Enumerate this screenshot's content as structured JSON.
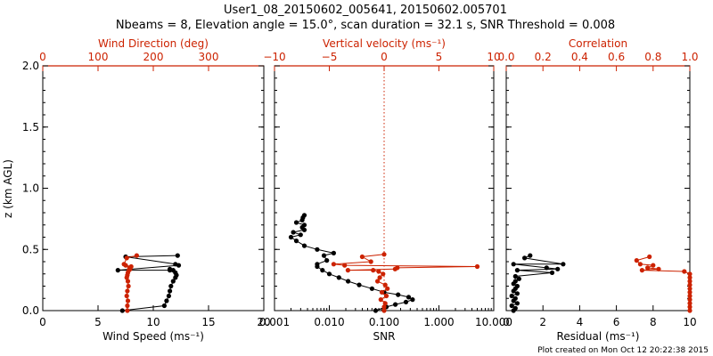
{
  "title_line1": "User1_08_20150602_005641, 20150602.005701",
  "title_line2": "Nbeams = 8, Elevation angle = 15.0°, scan duration = 32.1 s, SNR Threshold = 0.008",
  "footer": "Plot created on Mon Oct 12 20:22:38 2015",
  "colors": {
    "bottom_axis": "#000000",
    "top_axis": "#cc2200"
  },
  "chart_data": [
    {
      "type": "scatter",
      "panel": "wind",
      "ylabel": "z (km AGL)",
      "ylim": [
        0,
        2.0
      ],
      "yticks": [
        "0.0",
        "0.5",
        "1.0",
        "1.5",
        "2.0"
      ],
      "bottom_axis": {
        "label": "Wind Speed (ms⁻¹)",
        "lim": [
          0,
          20
        ],
        "ticks": [
          "0",
          "5",
          "10",
          "15",
          "20"
        ],
        "scale": "linear"
      },
      "top_axis": {
        "label": "Wind Direction (deg)",
        "lim": [
          0,
          400
        ],
        "ticks": [
          "0",
          "100",
          "200",
          "300"
        ],
        "scale": "linear"
      },
      "series": [
        {
          "axis": "bottom",
          "color": "#000000",
          "x": [
            7.2,
            11.0,
            11.2,
            11.4,
            11.5,
            11.6,
            11.8,
            12.0,
            12.1,
            12.0,
            11.8,
            11.5,
            11.5,
            6.8,
            12.3,
            12.0,
            7.5,
            12.2
          ],
          "y": [
            0.0,
            0.04,
            0.08,
            0.12,
            0.16,
            0.2,
            0.24,
            0.27,
            0.29,
            0.31,
            0.33,
            0.34,
            0.33,
            0.33,
            0.37,
            0.38,
            0.44,
            0.45
          ]
        },
        {
          "axis": "top",
          "color": "#cc2200",
          "x": [
            153,
            153,
            154,
            152,
            153,
            155,
            154,
            152,
            153,
            154,
            156,
            158,
            157,
            160,
            150,
            147,
            152,
            170
          ],
          "y": [
            0.0,
            0.04,
            0.08,
            0.12,
            0.16,
            0.2,
            0.24,
            0.27,
            0.29,
            0.31,
            0.33,
            0.34,
            0.35,
            0.36,
            0.37,
            0.38,
            0.43,
            0.45
          ]
        }
      ]
    },
    {
      "type": "scatter",
      "panel": "snr",
      "ylim": [
        0,
        2.0
      ],
      "bottom_axis": {
        "label": "SNR",
        "lim": [
          0.001,
          10
        ],
        "ticks": [
          "0.001",
          "0.010",
          "0.100",
          "1.000",
          "10.000"
        ],
        "scale": "log"
      },
      "top_axis": {
        "label": "Vertical velocity (ms⁻¹)",
        "lim": [
          -10,
          10
        ],
        "ticks": [
          "−10",
          "−5",
          "0",
          "5",
          "10"
        ],
        "scale": "linear",
        "zero_line": true
      },
      "series": [
        {
          "axis": "bottom",
          "color": "#000000",
          "x": [
            0.07,
            0.11,
            0.16,
            0.25,
            0.33,
            0.28,
            0.18,
            0.1,
            0.06,
            0.035,
            0.022,
            0.015,
            0.01,
            0.0075,
            0.006,
            0.006,
            0.009,
            0.008,
            0.012,
            0.006,
            0.0035,
            0.0025,
            0.002,
            0.003,
            0.0022,
            0.0035,
            0.0032,
            0.0035,
            0.0025,
            0.0032,
            0.0033,
            0.0035
          ],
          "y": [
            0.0,
            0.03,
            0.05,
            0.07,
            0.09,
            0.11,
            0.13,
            0.15,
            0.18,
            0.21,
            0.24,
            0.27,
            0.3,
            0.33,
            0.36,
            0.38,
            0.41,
            0.45,
            0.47,
            0.5,
            0.53,
            0.57,
            0.6,
            0.62,
            0.64,
            0.66,
            0.68,
            0.7,
            0.72,
            0.74,
            0.76,
            0.78
          ]
        },
        {
          "axis": "top",
          "color": "#cc2200",
          "x": [
            0.0,
            0.0,
            0.1,
            -0.3,
            0.2,
            -0.2,
            0.3,
            0.1,
            -0.6,
            -0.4,
            -0.1,
            -0.5,
            -1.0,
            -3.3,
            1.0,
            1.2,
            8.5,
            -3.6,
            -4.6,
            -1.2,
            -2.0,
            0.0
          ],
          "y": [
            0.0,
            0.03,
            0.06,
            0.09,
            0.12,
            0.15,
            0.18,
            0.21,
            0.24,
            0.27,
            0.3,
            0.32,
            0.33,
            0.33,
            0.34,
            0.35,
            0.36,
            0.37,
            0.38,
            0.4,
            0.44,
            0.46
          ]
        }
      ]
    },
    {
      "type": "scatter",
      "panel": "residual",
      "ylim": [
        0,
        2.0
      ],
      "bottom_axis": {
        "label": "Residual (ms⁻¹)",
        "lim": [
          0,
          10
        ],
        "ticks": [
          "0",
          "2",
          "4",
          "6",
          "8",
          "10"
        ],
        "scale": "linear"
      },
      "top_axis": {
        "label": "Correlation",
        "lim": [
          0,
          1.0
        ],
        "ticks": [
          "0.0",
          "0.2",
          "0.4",
          "0.6",
          "0.8",
          "1.0"
        ],
        "scale": "linear"
      },
      "series": [
        {
          "axis": "bottom",
          "color": "#000000",
          "x": [
            0.4,
            0.5,
            0.3,
            0.6,
            0.4,
            0.5,
            0.3,
            0.6,
            0.4,
            0.5,
            0.6,
            0.4,
            0.5,
            0.7,
            0.5,
            2.5,
            0.6,
            2.8,
            2.2,
            0.4,
            3.1,
            1.0,
            1.3
          ],
          "y": [
            0.0,
            0.02,
            0.04,
            0.06,
            0.08,
            0.1,
            0.12,
            0.14,
            0.16,
            0.18,
            0.2,
            0.22,
            0.24,
            0.26,
            0.28,
            0.31,
            0.33,
            0.34,
            0.35,
            0.38,
            0.38,
            0.43,
            0.45
          ]
        },
        {
          "axis": "top",
          "color": "#cc2200",
          "x": [
            1.0,
            1.0,
            1.0,
            1.0,
            1.0,
            1.0,
            1.0,
            1.0,
            1.0,
            1.0,
            1.0,
            0.97,
            0.74,
            0.83,
            0.77,
            0.8,
            0.73,
            0.71,
            0.78
          ],
          "y": [
            0.0,
            0.03,
            0.06,
            0.09,
            0.12,
            0.15,
            0.18,
            0.21,
            0.24,
            0.27,
            0.3,
            0.32,
            0.33,
            0.34,
            0.35,
            0.37,
            0.38,
            0.41,
            0.44
          ]
        }
      ]
    }
  ]
}
